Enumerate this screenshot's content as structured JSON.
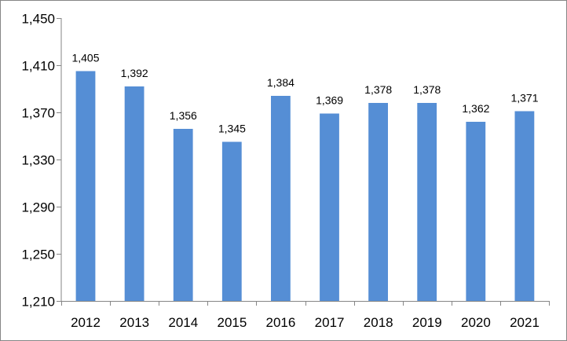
{
  "chart_data": {
    "type": "bar",
    "title": "",
    "xlabel": "",
    "ylabel": "",
    "categories": [
      "2012",
      "2013",
      "2014",
      "2015",
      "2016",
      "2017",
      "2018",
      "2019",
      "2020",
      "2021"
    ],
    "values": [
      1405,
      1392,
      1356,
      1345,
      1384,
      1369,
      1378,
      1378,
      1362,
      1371
    ],
    "data_labels": [
      "1,405",
      "1,392",
      "1,356",
      "1,345",
      "1,384",
      "1,369",
      "1,378",
      "1,378",
      "1,362",
      "1,371"
    ],
    "ylim": [
      1210,
      1450
    ],
    "yticks": [
      1210,
      1250,
      1290,
      1330,
      1370,
      1410,
      1450
    ],
    "ytick_labels": [
      "1,210",
      "1,250",
      "1,290",
      "1,330",
      "1,370",
      "1,410",
      "1,450"
    ],
    "grid": false,
    "legend": "none",
    "bar_color": "#558ED5",
    "axis_color": "#868686"
  }
}
